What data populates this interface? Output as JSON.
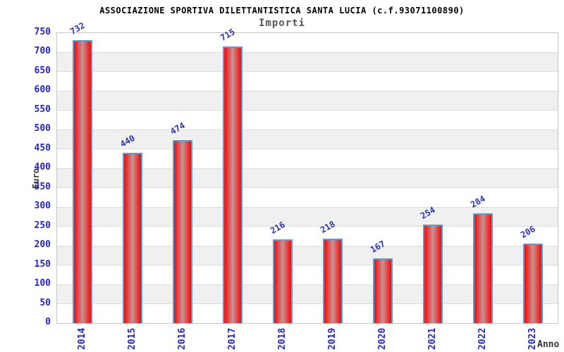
{
  "chart_data": {
    "type": "bar",
    "title": "ASSOCIAZIONE SPORTIVA DILETTANTISTICA SANTA LUCIA (c.f.93071100890)",
    "subtitle": "Importi",
    "xlabel": "Anno",
    "ylabel": "Euro",
    "categories": [
      "2014",
      "2015",
      "2016",
      "2017",
      "2018",
      "2019",
      "2020",
      "2021",
      "2022",
      "2023"
    ],
    "values": [
      732,
      440,
      474,
      715,
      216,
      218,
      167,
      254,
      284,
      206
    ],
    "ylim": [
      0,
      750
    ],
    "ytick_step": 50,
    "grid": true,
    "legend": "none",
    "colors": {
      "bar_edge": "#e81111",
      "bar_mid": "#c69493",
      "bar_border": "#5b9bd5",
      "tick_label": "#2424cc",
      "value_label": "#2a34b0",
      "title_text": "#000000",
      "subtitle_text": "#555555",
      "axis_label_text": "#333333",
      "band_fill": "#f0f0f0",
      "gridline": "#dcdcdc",
      "plot_border": "#c6c6c6",
      "background": "#ffffff"
    }
  }
}
